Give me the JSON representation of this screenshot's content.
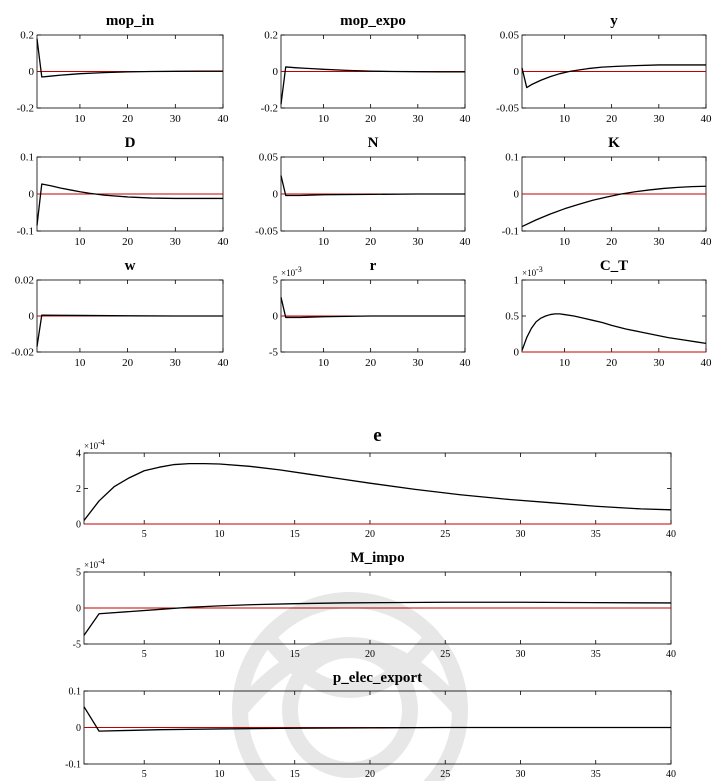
{
  "chart_data": [
    {
      "type": "line",
      "title": "mop_in",
      "xlim": [
        1,
        40
      ],
      "xticks": [
        10,
        20,
        30,
        40
      ],
      "ylim": [
        -0.2,
        0.2
      ],
      "yticks": [
        -0.2,
        0,
        0.2
      ],
      "yticklabels": [
        "-0.2",
        "0",
        "0.2"
      ],
      "exponent": "",
      "series": [
        {
          "x": [
            1,
            2,
            4,
            6,
            8,
            10,
            15,
            20,
            25,
            30,
            35,
            40
          ],
          "values": [
            0.18,
            -0.03,
            -0.025,
            -0.02,
            -0.016,
            -0.012,
            -0.006,
            -0.002,
            0,
            0.001,
            0.002,
            0.002
          ]
        }
      ]
    },
    {
      "type": "line",
      "title": "mop_expo",
      "xlim": [
        1,
        40
      ],
      "xticks": [
        10,
        20,
        30,
        40
      ],
      "ylim": [
        -0.2,
        0.2
      ],
      "yticks": [
        -0.2,
        0,
        0.2
      ],
      "yticklabels": [
        "-0.2",
        "0",
        "0.2"
      ],
      "exponent": "",
      "series": [
        {
          "x": [
            1,
            2,
            4,
            6,
            8,
            10,
            15,
            20,
            25,
            30,
            35,
            40
          ],
          "values": [
            -0.18,
            0.025,
            0.021,
            0.018,
            0.015,
            0.012,
            0.006,
            0.002,
            0,
            -0.001,
            -0.002,
            -0.002
          ]
        }
      ]
    },
    {
      "type": "line",
      "title": "y",
      "xlim": [
        1,
        40
      ],
      "xticks": [
        10,
        20,
        30,
        40
      ],
      "ylim": [
        -0.05,
        0.05
      ],
      "yticks": [
        -0.05,
        0,
        0.05
      ],
      "yticklabels": [
        "-0.05",
        "0",
        "0.05"
      ],
      "exponent": "",
      "series": [
        {
          "x": [
            1,
            2,
            3,
            5,
            7,
            9,
            11,
            13,
            15,
            18,
            21,
            25,
            30,
            35,
            40
          ],
          "values": [
            0.005,
            -0.022,
            -0.018,
            -0.012,
            -0.007,
            -0.003,
            0,
            0.002,
            0.004,
            0.006,
            0.007,
            0.008,
            0.009,
            0.009,
            0.009
          ]
        }
      ]
    },
    {
      "type": "line",
      "title": "D",
      "xlim": [
        1,
        40
      ],
      "xticks": [
        10,
        20,
        30,
        40
      ],
      "ylim": [
        -0.1,
        0.1
      ],
      "yticks": [
        -0.1,
        0,
        0.1
      ],
      "yticklabels": [
        "-0.1",
        "0",
        "0.1"
      ],
      "exponent": "",
      "series": [
        {
          "x": [
            1,
            2,
            4,
            6,
            8,
            10,
            12,
            15,
            20,
            25,
            30,
            35,
            40
          ],
          "values": [
            -0.085,
            0.027,
            0.022,
            0.016,
            0.011,
            0.006,
            0.002,
            -0.003,
            -0.008,
            -0.011,
            -0.012,
            -0.012,
            -0.012
          ]
        }
      ]
    },
    {
      "type": "line",
      "title": "N",
      "xlim": [
        1,
        40
      ],
      "xticks": [
        10,
        20,
        30,
        40
      ],
      "ylim": [
        -0.05,
        0.05
      ],
      "yticks": [
        -0.05,
        0,
        0.05
      ],
      "yticklabels": [
        "-0.05",
        "0",
        "0.05"
      ],
      "exponent": "",
      "series": [
        {
          "x": [
            1,
            2,
            5,
            10,
            20,
            30,
            40
          ],
          "values": [
            0.025,
            -0.002,
            -0.002,
            -0.001,
            -0.0005,
            0,
            0
          ]
        }
      ]
    },
    {
      "type": "line",
      "title": "K",
      "xlim": [
        1,
        40
      ],
      "xticks": [
        10,
        20,
        30,
        40
      ],
      "ylim": [
        -0.1,
        0.1
      ],
      "yticks": [
        -0.1,
        0,
        0.1
      ],
      "yticklabels": [
        "-0.1",
        "0",
        "0.1"
      ],
      "exponent": "",
      "series": [
        {
          "x": [
            1,
            4,
            7,
            10,
            13,
            16,
            19,
            22,
            25,
            28,
            31,
            34,
            37,
            40
          ],
          "values": [
            -0.088,
            -0.07,
            -0.054,
            -0.04,
            -0.028,
            -0.017,
            -0.008,
            0,
            0.006,
            0.011,
            0.015,
            0.018,
            0.02,
            0.021
          ]
        }
      ]
    },
    {
      "type": "line",
      "title": "w",
      "xlim": [
        1,
        40
      ],
      "xticks": [
        10,
        20,
        30,
        40
      ],
      "ylim": [
        -0.02,
        0.02
      ],
      "yticks": [
        -0.02,
        0,
        0.02
      ],
      "yticklabels": [
        "-0.02",
        "0",
        "0.02"
      ],
      "exponent": "",
      "series": [
        {
          "x": [
            1,
            2,
            5,
            10,
            20,
            30,
            40
          ],
          "values": [
            -0.017,
            0.0005,
            0.0004,
            0.0003,
            0.0001,
            0,
            0
          ]
        }
      ]
    },
    {
      "type": "line",
      "title": "r",
      "xlim": [
        1,
        40
      ],
      "xticks": [
        10,
        20,
        30,
        40
      ],
      "ylim": [
        -5,
        5
      ],
      "yticks": [
        -5,
        0,
        5
      ],
      "yticklabels": [
        "-5",
        "0",
        "5"
      ],
      "exponent": "-3",
      "series": [
        {
          "x": [
            1,
            2,
            5,
            10,
            20,
            30,
            40
          ],
          "values": [
            2.6,
            -0.2,
            -0.2,
            -0.1,
            0,
            0,
            0
          ]
        }
      ]
    },
    {
      "type": "line",
      "title": "C_T",
      "xlim": [
        1,
        40
      ],
      "xticks": [
        10,
        20,
        30,
        40
      ],
      "ylim": [
        0,
        1
      ],
      "yticks": [
        0,
        0.5,
        1
      ],
      "yticklabels": [
        "0",
        "0.5",
        "1"
      ],
      "exponent": "-3",
      "series": [
        {
          "x": [
            1,
            2,
            3,
            4,
            5,
            6,
            7,
            8,
            9,
            10,
            12,
            14,
            16,
            18,
            20,
            23,
            26,
            29,
            32,
            35,
            38,
            40
          ],
          "values": [
            0.02,
            0.2,
            0.33,
            0.42,
            0.47,
            0.5,
            0.52,
            0.53,
            0.53,
            0.52,
            0.5,
            0.47,
            0.44,
            0.41,
            0.37,
            0.32,
            0.28,
            0.24,
            0.2,
            0.17,
            0.14,
            0.12
          ]
        }
      ]
    },
    {
      "type": "line",
      "title": "e",
      "xlim": [
        1,
        40
      ],
      "xticks": [
        5,
        10,
        15,
        20,
        25,
        30,
        35,
        40
      ],
      "ylim": [
        0,
        4
      ],
      "yticks": [
        0,
        2,
        4
      ],
      "yticklabels": [
        "0",
        "2",
        "4"
      ],
      "exponent": "-4",
      "series": [
        {
          "x": [
            1,
            2,
            3,
            4,
            5,
            6,
            7,
            8,
            9,
            10,
            12,
            14,
            16,
            18,
            20,
            23,
            26,
            29,
            32,
            35,
            38,
            40
          ],
          "values": [
            0.2,
            1.3,
            2.1,
            2.6,
            3.0,
            3.2,
            3.35,
            3.4,
            3.4,
            3.38,
            3.25,
            3.05,
            2.8,
            2.55,
            2.3,
            1.95,
            1.65,
            1.4,
            1.2,
            1.0,
            0.85,
            0.8
          ]
        }
      ]
    },
    {
      "type": "line",
      "title": "M_impo",
      "xlim": [
        1,
        40
      ],
      "xticks": [
        5,
        10,
        15,
        20,
        25,
        30,
        35,
        40
      ],
      "ylim": [
        -5,
        5
      ],
      "yticks": [
        -5,
        0,
        5
      ],
      "yticklabels": [
        "-5",
        "0",
        "5"
      ],
      "exponent": "-4",
      "series": [
        {
          "x": [
            1,
            2,
            4,
            6,
            8,
            10,
            12,
            15,
            18,
            21,
            25,
            30,
            35,
            40
          ],
          "values": [
            -3.8,
            -0.8,
            -0.5,
            -0.2,
            0.1,
            0.3,
            0.45,
            0.6,
            0.7,
            0.75,
            0.8,
            0.8,
            0.75,
            0.7
          ]
        }
      ]
    },
    {
      "type": "line",
      "title": "p_elec_export",
      "xlim": [
        1,
        40
      ],
      "xticks": [
        5,
        10,
        15,
        20,
        25,
        30,
        35,
        40
      ],
      "ylim": [
        -0.1,
        0.1
      ],
      "yticks": [
        -0.1,
        0,
        0.1
      ],
      "yticklabels": [
        "-0.1",
        "0",
        "0.1"
      ],
      "exponent": "",
      "series": [
        {
          "x": [
            1,
            2,
            4,
            6,
            8,
            10,
            15,
            20,
            25,
            30,
            35,
            40
          ],
          "values": [
            0.057,
            -0.01,
            -0.008,
            -0.006,
            -0.005,
            -0.004,
            -0.002,
            -0.001,
            0,
            0,
            0,
            0
          ]
        }
      ]
    }
  ],
  "colors": {
    "series": "#000000",
    "zero_line": "#c00000",
    "axes": "#000000"
  }
}
